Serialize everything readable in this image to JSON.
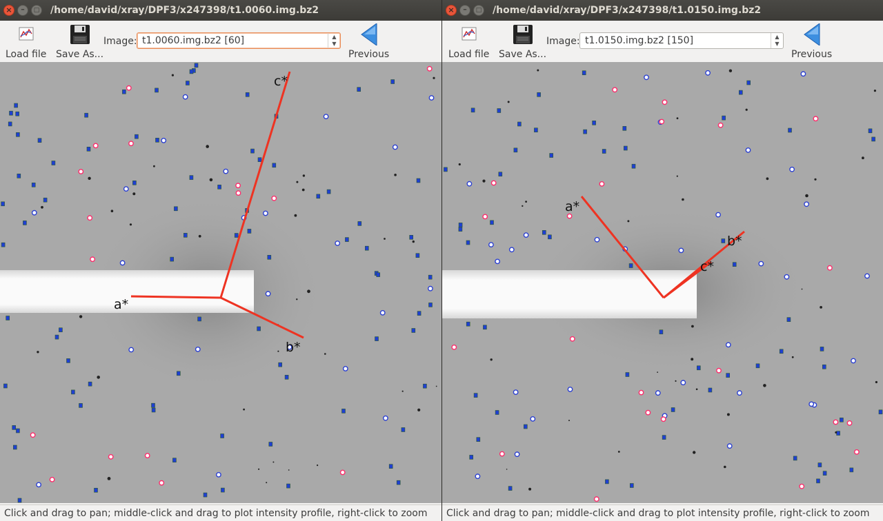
{
  "windows": [
    {
      "title": "/home/david/xray/DPF3/x247398/t1.0060.img.bz2",
      "toolbar": {
        "load_label": "Load file",
        "save_label": "Save As...",
        "image_label": "Image:",
        "image_value": "t1.0060.img.bz2 [60]",
        "previous_label": "Previous"
      },
      "axes": {
        "a": "a*",
        "b": "b*",
        "c": "c*"
      },
      "status": "Click and drag to pan; middle-click and drag to plot intensity profile, right-click to zoom"
    },
    {
      "title": "/home/david/xray/DPF3/x247398/t1.0150.img.bz2",
      "toolbar": {
        "load_label": "Load file",
        "save_label": "Save As...",
        "image_label": "Image:",
        "image_value": "t1.0150.img.bz2 [150]",
        "previous_label": "Previous"
      },
      "axes": {
        "a": "a*",
        "b": "b*",
        "c": "c*"
      },
      "status": "Click and drag to pan; middle-click and drag to plot intensity profile, right-click to zoom"
    }
  ],
  "colors": {
    "axis_line": "#ee3322",
    "predicted_spot": "#1f3fd1",
    "observed_spot": "#ff2a6a",
    "background": "#a8a8a8",
    "beamstop": "#f4f4f4"
  },
  "icons": {
    "load": "load-file-icon",
    "save": "floppy-disk-icon",
    "previous": "left-arrow-icon"
  }
}
